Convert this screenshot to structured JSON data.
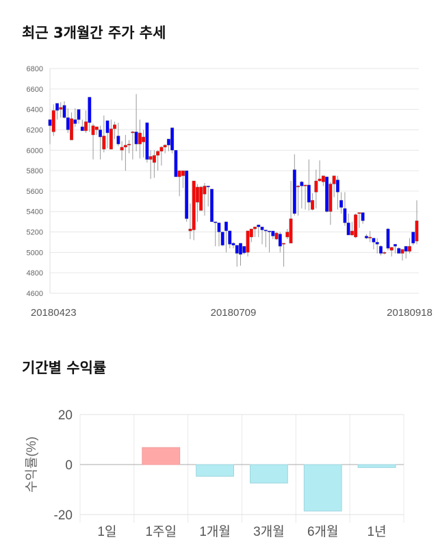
{
  "chart_data": [
    {
      "type": "candlestick",
      "title": "최근 3개월간 주가 추세",
      "ylim": [
        4600,
        6800
      ],
      "yticks": [
        4600,
        4800,
        5000,
        5200,
        5400,
        5600,
        5800,
        6000,
        6200,
        6400,
        6600,
        6800
      ],
      "xticks": [
        {
          "index": 1,
          "label": "20180423"
        },
        {
          "index": 51,
          "label": "20180709"
        },
        {
          "index": 100,
          "label": "20180918"
        }
      ],
      "grid": true,
      "colors": {
        "up": "#ff0000",
        "down": "#0000ff",
        "wick": "#999999",
        "grid": "#e6e6e6"
      },
      "ohlc": [
        [
          6300,
          6300,
          6060,
          6240
        ],
        [
          6180,
          6450,
          6140,
          6390
        ],
        [
          6460,
          6460,
          6300,
          6390
        ],
        [
          6400,
          6470,
          6320,
          6420
        ],
        [
          6440,
          6480,
          6310,
          6320
        ],
        [
          6320,
          6410,
          6170,
          6200
        ],
        [
          6100,
          6370,
          6100,
          6310
        ],
        [
          6300,
          6410,
          6230,
          6260
        ],
        [
          6400,
          6400,
          6260,
          6300
        ],
        [
          6230,
          6300,
          6190,
          6190
        ],
        [
          6190,
          6390,
          6170,
          6280
        ],
        [
          6520,
          6520,
          6180,
          6270
        ],
        [
          6150,
          6260,
          5910,
          6240
        ],
        [
          6200,
          6230,
          6150,
          6230
        ],
        [
          6200,
          6240,
          5910,
          6130
        ],
        [
          6010,
          6340,
          5980,
          6140
        ],
        [
          6290,
          6290,
          6020,
          6170
        ],
        [
          6010,
          6300,
          6010,
          6210
        ],
        [
          6210,
          6280,
          6110,
          6250
        ],
        [
          6140,
          6270,
          6040,
          6060
        ],
        [
          6000,
          6090,
          5900,
          6030
        ],
        [
          6030,
          6150,
          5800,
          6050
        ],
        [
          6050,
          6100,
          5970,
          6060
        ],
        [
          6170,
          6190,
          5910,
          6180
        ],
        [
          6180,
          6550,
          5990,
          6060
        ],
        [
          6060,
          6300,
          5920,
          6170
        ],
        [
          6080,
          6200,
          5930,
          6130
        ],
        [
          6270,
          6270,
          5880,
          5910
        ],
        [
          5910,
          6000,
          5720,
          5940
        ],
        [
          5880,
          6000,
          5730,
          5950
        ],
        [
          5950,
          6000,
          5800,
          5990
        ],
        [
          5990,
          6040,
          5850,
          6030
        ],
        [
          6030,
          6060,
          5970,
          6050
        ],
        [
          6110,
          6110,
          5990,
          6050
        ],
        [
          6220,
          6220,
          5970,
          6000
        ],
        [
          6000,
          6000,
          5740,
          5740
        ],
        [
          5740,
          5800,
          5550,
          5800
        ],
        [
          5750,
          5800,
          5630,
          5800
        ],
        [
          5800,
          5800,
          5300,
          5330
        ],
        [
          5210,
          5480,
          5130,
          5230
        ],
        [
          5220,
          5700,
          5120,
          5700
        ],
        [
          5490,
          5670,
          5300,
          5640
        ],
        [
          5410,
          5650,
          5410,
          5640
        ],
        [
          5570,
          5680,
          5360,
          5650
        ],
        [
          5650,
          5650,
          5450,
          5640
        ],
        [
          5620,
          5620,
          5300,
          5300
        ],
        [
          5300,
          5300,
          5060,
          5290
        ],
        [
          5290,
          5290,
          5060,
          5200
        ],
        [
          5200,
          5200,
          5060,
          5070
        ],
        [
          5300,
          5300,
          5000,
          5211
        ],
        [
          5211,
          5211,
          5040,
          5080
        ],
        [
          5090,
          5100,
          5040,
          5070
        ],
        [
          5070,
          5070,
          4860,
          4990
        ],
        [
          5090,
          5090,
          4870,
          4980
        ],
        [
          5060,
          5060,
          4980,
          4995
        ],
        [
          5000,
          5211,
          4960,
          5211
        ],
        [
          5150,
          5230,
          5100,
          5230
        ],
        [
          5230,
          5250,
          5150,
          5250
        ],
        [
          5270,
          5270,
          5150,
          5250
        ],
        [
          5250,
          5250,
          5080,
          5220
        ],
        [
          5220,
          5220,
          5050,
          5210
        ],
        [
          5210,
          5210,
          5000,
          5205
        ],
        [
          5210,
          5210,
          5130,
          5160
        ],
        [
          5130,
          5200,
          5120,
          5190
        ],
        [
          5180,
          5200,
          5000,
          5060
        ],
        [
          5080,
          5090,
          4860,
          5090
        ],
        [
          5150,
          5230,
          5130,
          5200
        ],
        [
          5090,
          5700,
          5090,
          5330
        ],
        [
          5810,
          5960,
          5360,
          5380
        ],
        [
          5640,
          5660,
          5360,
          5650
        ],
        [
          5690,
          5700,
          5430,
          5650
        ],
        [
          5650,
          5660,
          5420,
          5660
        ],
        [
          5660,
          5910,
          5410,
          5490
        ],
        [
          5420,
          5580,
          5410,
          5510
        ],
        [
          5590,
          5810,
          5430,
          5700
        ],
        [
          5700,
          5900,
          5690,
          5720
        ],
        [
          5690,
          5750,
          5650,
          5750
        ],
        [
          5740,
          5740,
          5390,
          5400
        ],
        [
          5400,
          5690,
          5270,
          5670
        ],
        [
          5670,
          5750,
          5540,
          5750
        ],
        [
          5710,
          5750,
          5420,
          5590
        ],
        [
          5510,
          5590,
          5380,
          5440
        ],
        [
          5430,
          5590,
          5260,
          5290
        ],
        [
          5290,
          5380,
          5170,
          5170
        ],
        [
          5170,
          5300,
          5160,
          5210
        ],
        [
          5150,
          5380,
          5140,
          5370
        ],
        [
          5380,
          5390,
          5240,
          5390
        ],
        [
          5390,
          5390,
          5280,
          5310
        ],
        [
          5160,
          5180,
          5130,
          5140
        ],
        [
          5140,
          5210,
          5100,
          5150
        ],
        [
          5140,
          5140,
          5030,
          5100
        ],
        [
          5100,
          5140,
          4990,
          5080
        ],
        [
          5060,
          5070,
          4970,
          4990
        ],
        [
          5000,
          5010,
          4980,
          5000
        ],
        [
          5230,
          5240,
          5020,
          5040
        ],
        [
          5020,
          5050,
          4960,
          5050
        ],
        [
          5080,
          5080,
          4990,
          5060
        ],
        [
          5040,
          5050,
          4990,
          4990
        ],
        [
          4990,
          5030,
          4920,
          5030
        ],
        [
          5060,
          5060,
          4940,
          5010
        ],
        [
          5010,
          5140,
          4990,
          5060
        ],
        [
          5200,
          5200,
          5070,
          5090
        ],
        [
          5110,
          5510,
          5080,
          5310
        ]
      ]
    },
    {
      "type": "bar",
      "title": "기간별 수익률",
      "ylabel": "수익률(%)",
      "ylim": [
        -20,
        20
      ],
      "yticks": [
        -20,
        0,
        20
      ],
      "categories": [
        "1일",
        "1주일",
        "1개월",
        "3개월",
        "6개월",
        "1년"
      ],
      "values": [
        0,
        6.8,
        -4.7,
        -7.4,
        -18.6,
        -1.2
      ],
      "colors": {
        "positive": "#ffa8a8",
        "positive_border": "#f09a9a",
        "negative": "#b2ebf2",
        "negative_border": "#9fd6de"
      }
    }
  ]
}
